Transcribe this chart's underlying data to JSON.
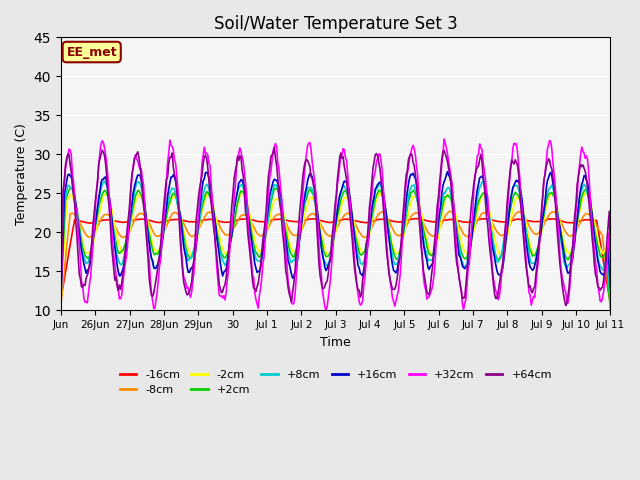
{
  "title": "Soil/Water Temperature Set 3",
  "xlabel": "Time",
  "ylabel": "Temperature (C)",
  "ylim": [
    10,
    45
  ],
  "yticks": [
    10,
    15,
    20,
    25,
    30,
    35,
    40,
    45
  ],
  "annotation": "EE_met",
  "annotation_color": "#8B0000",
  "annotation_bg": "#FFFF99",
  "series_labels": [
    "-16cm",
    "-8cm",
    "-2cm",
    "+2cm",
    "+8cm",
    "+16cm",
    "+32cm",
    "+64cm"
  ],
  "series_colors": [
    "#FF0000",
    "#FF8C00",
    "#FFFF00",
    "#00CC00",
    "#00CCCC",
    "#0000CD",
    "#FF00FF",
    "#8B008B"
  ],
  "x_tick_labels": [
    "Jun",
    "26Jun",
    "27Jun",
    "28Jun",
    "29Jun",
    "30",
    "Jul 1",
    "Jul 2",
    "Jul 3",
    "Jul 4",
    "Jul 5",
    "Jul 6",
    "Jul 7",
    "Jul 8",
    "Jul 9",
    "Jul 10",
    "Jul 11"
  ],
  "background_color": "#E8E8E8",
  "plot_bg": "#F5F5F5",
  "n_points": 480,
  "seed": 42
}
